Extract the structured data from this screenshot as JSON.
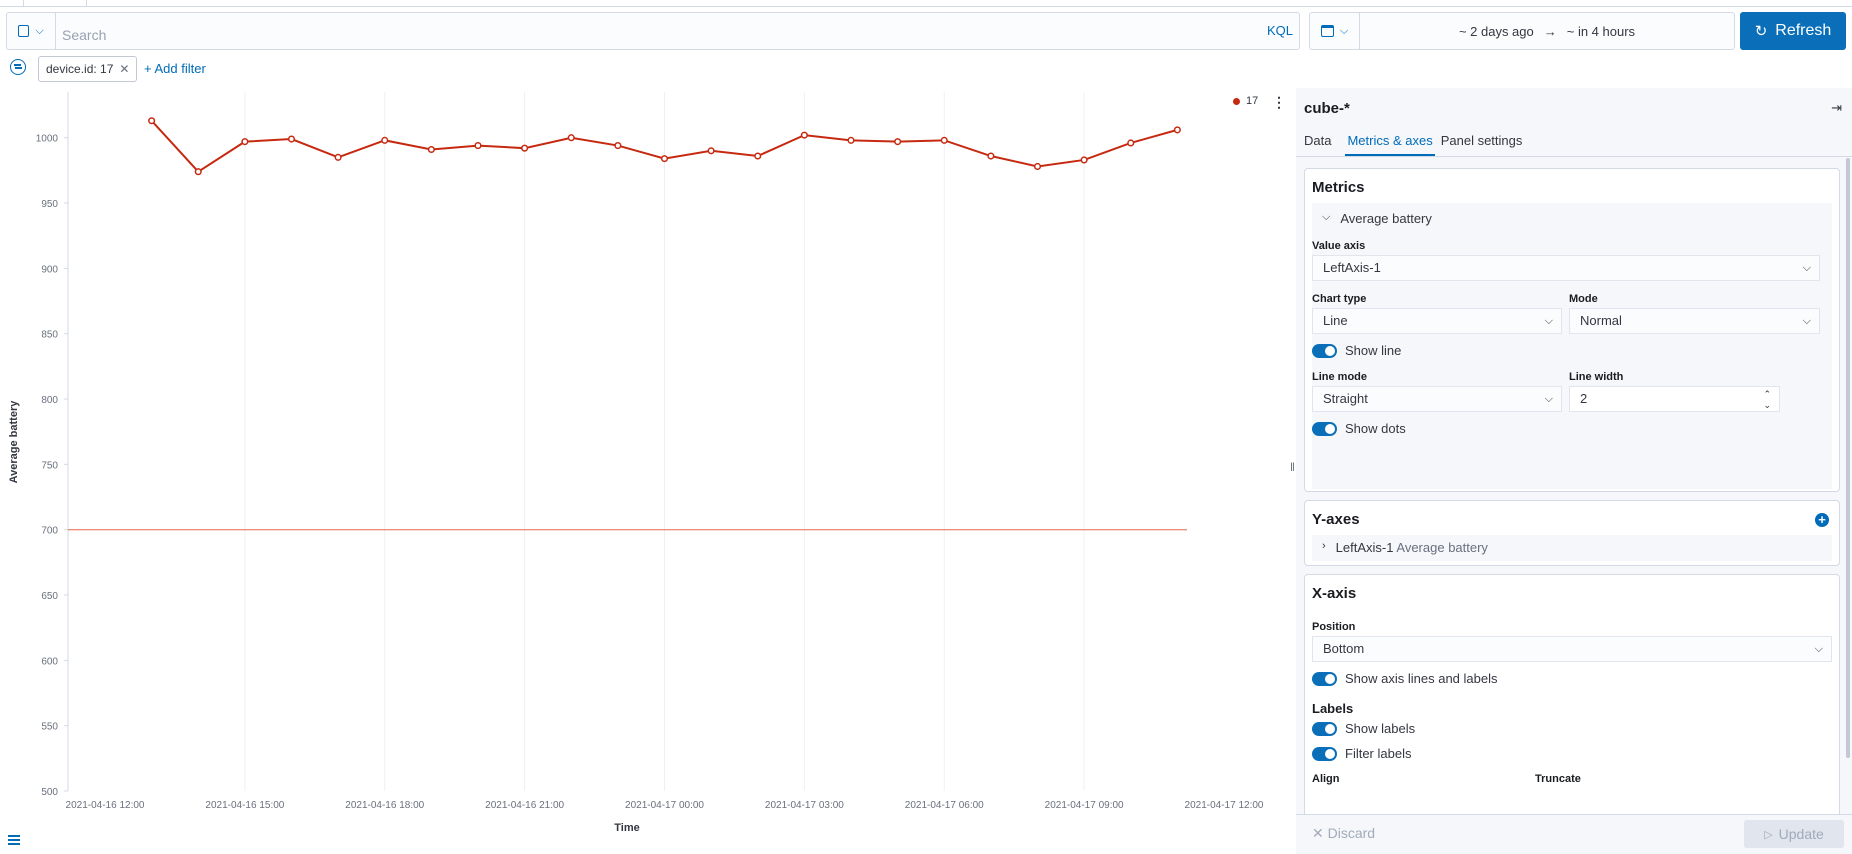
{
  "querybar": {
    "search_placeholder": "Search",
    "kql": "KQL"
  },
  "date": {
    "start": "~ 2 days ago",
    "arrow": "→",
    "end": "~ in 4 hours"
  },
  "refresh_label": "Refresh",
  "filters": {
    "pill": "device.id: 17",
    "add": "+ Add filter"
  },
  "legend": {
    "label": "17"
  },
  "chart_data": {
    "type": "line",
    "x": [
      "2021-04-16 13:00",
      "2021-04-16 14:00",
      "2021-04-16 15:00",
      "2021-04-16 16:00",
      "2021-04-16 17:00",
      "2021-04-16 18:00",
      "2021-04-16 19:00",
      "2021-04-16 20:00",
      "2021-04-16 21:00",
      "2021-04-16 22:00",
      "2021-04-16 23:00",
      "2021-04-17 00:00",
      "2021-04-17 01:00",
      "2021-04-17 02:00",
      "2021-04-17 03:00",
      "2021-04-17 04:00",
      "2021-04-17 05:00",
      "2021-04-17 06:00",
      "2021-04-17 07:00",
      "2021-04-17 08:00",
      "2021-04-17 09:00",
      "2021-04-17 10:00",
      "2021-04-17 11:00"
    ],
    "series": [
      {
        "name": "17",
        "color": "#c6290f",
        "values": [
          1013,
          974,
          997,
          999,
          985,
          998,
          991,
          994,
          992,
          1000,
          994,
          984,
          990,
          986,
          1002,
          998,
          997,
          998,
          986,
          978,
          983,
          996,
          1006
        ]
      }
    ],
    "threshold": 700,
    "xticks": [
      "2021-04-16 12:00",
      "2021-04-16 15:00",
      "2021-04-16 18:00",
      "2021-04-16 21:00",
      "2021-04-17 00:00",
      "2021-04-17 03:00",
      "2021-04-17 06:00",
      "2021-04-17 09:00",
      "2021-04-17 12:00"
    ],
    "yticks": [
      1000,
      950,
      900,
      850,
      800,
      750,
      700,
      650,
      600,
      550,
      500
    ],
    "xlabel": "Time",
    "ylabel": "Average battery",
    "ylim": [
      500,
      1035
    ]
  },
  "panel": {
    "title": "cube-*",
    "tabs": [
      "Data",
      "Metrics & axes",
      "Panel settings"
    ],
    "metrics": {
      "heading": "Metrics",
      "item": "Average battery",
      "value_axis_label": "Value axis",
      "value_axis": "LeftAxis-1",
      "chart_type_label": "Chart type",
      "chart_type": "Line",
      "mode_label": "Mode",
      "mode": "Normal",
      "show_line": "Show line",
      "line_mode_label": "Line mode",
      "line_mode": "Straight",
      "line_width_label": "Line width",
      "line_width": "2",
      "show_dots": "Show dots"
    },
    "yaxes": {
      "heading": "Y-axes",
      "item": "LeftAxis-1",
      "item_sub": "Average battery"
    },
    "xaxis": {
      "heading": "X-axis",
      "position_label": "Position",
      "position": "Bottom",
      "show_axis": "Show axis lines and labels",
      "labels_heading": "Labels",
      "show_labels": "Show labels",
      "filter_labels": "Filter labels",
      "align": "Align",
      "truncate": "Truncate"
    },
    "discard": "Discard",
    "update": "Update"
  }
}
